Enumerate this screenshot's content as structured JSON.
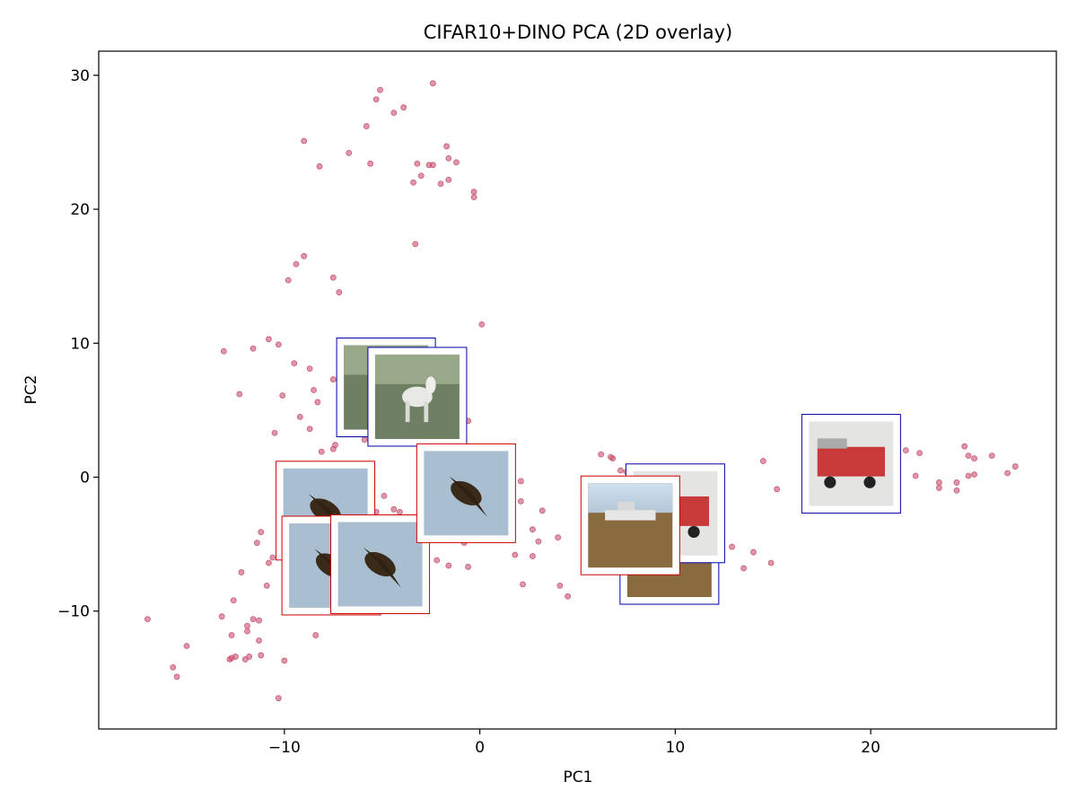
{
  "chart_data": {
    "type": "scatter",
    "title": "CIFAR10+DINO PCA (2D overlay)",
    "xlabel": "PC1",
    "ylabel": "PC2",
    "xlim": [
      -19.5,
      29.5
    ],
    "ylim": [
      -18.8,
      31.8
    ],
    "xticks": [
      -10,
      0,
      10,
      20
    ],
    "yticks": [
      -10,
      0,
      10,
      20,
      30
    ],
    "xtick_labels": [
      "−10",
      "0",
      "10",
      "20"
    ],
    "ytick_labels": [
      "−10",
      "0",
      "10",
      "20",
      "30"
    ],
    "grid": false,
    "marker_color": "#c8506e",
    "points": [
      {
        "x": -2.4,
        "y": 29.4
      },
      {
        "x": -5.1,
        "y": 28.9
      },
      {
        "x": -5.3,
        "y": 28.2
      },
      {
        "x": -3.9,
        "y": 27.6
      },
      {
        "x": -4.4,
        "y": 27.2
      },
      {
        "x": -5.8,
        "y": 26.2
      },
      {
        "x": -9.0,
        "y": 25.1
      },
      {
        "x": -1.7,
        "y": 24.7
      },
      {
        "x": -6.7,
        "y": 24.2
      },
      {
        "x": -1.6,
        "y": 23.8
      },
      {
        "x": -1.2,
        "y": 23.5
      },
      {
        "x": -5.6,
        "y": 23.4
      },
      {
        "x": -3.2,
        "y": 23.4
      },
      {
        "x": -2.6,
        "y": 23.3
      },
      {
        "x": -2.4,
        "y": 23.3
      },
      {
        "x": -8.2,
        "y": 23.2
      },
      {
        "x": -3.0,
        "y": 22.5
      },
      {
        "x": -1.6,
        "y": 22.2
      },
      {
        "x": -3.4,
        "y": 22.0
      },
      {
        "x": -2.0,
        "y": 21.9
      },
      {
        "x": -0.3,
        "y": 21.3
      },
      {
        "x": -0.3,
        "y": 20.9
      },
      {
        "x": -3.3,
        "y": 17.4
      },
      {
        "x": -9.0,
        "y": 16.5
      },
      {
        "x": -9.4,
        "y": 15.9
      },
      {
        "x": -7.5,
        "y": 14.9
      },
      {
        "x": -9.8,
        "y": 14.7
      },
      {
        "x": -7.2,
        "y": 13.8
      },
      {
        "x": 0.1,
        "y": 11.4
      },
      {
        "x": -10.8,
        "y": 10.3
      },
      {
        "x": -10.3,
        "y": 9.9
      },
      {
        "x": -11.6,
        "y": 9.6
      },
      {
        "x": -13.1,
        "y": 9.4
      },
      {
        "x": -9.5,
        "y": 8.5
      },
      {
        "x": -8.7,
        "y": 8.1
      },
      {
        "x": -7.5,
        "y": 7.3
      },
      {
        "x": -8.5,
        "y": 6.5
      },
      {
        "x": -12.3,
        "y": 6.2
      },
      {
        "x": -10.1,
        "y": 6.1
      },
      {
        "x": -8.3,
        "y": 5.6
      },
      {
        "x": -9.2,
        "y": 4.5
      },
      {
        "x": -0.6,
        "y": 4.2
      },
      {
        "x": -8.7,
        "y": 3.6
      },
      {
        "x": -10.5,
        "y": 3.3
      },
      {
        "x": -4.3,
        "y": 3.0
      },
      {
        "x": -5.9,
        "y": 2.8
      },
      {
        "x": -7.4,
        "y": 2.4
      },
      {
        "x": -7.5,
        "y": 2.1
      },
      {
        "x": -8.1,
        "y": 1.9
      },
      {
        "x": 6.2,
        "y": 1.7
      },
      {
        "x": 6.7,
        "y": 1.5
      },
      {
        "x": 6.8,
        "y": 1.4
      },
      {
        "x": 7.2,
        "y": 0.5
      },
      {
        "x": 7.5,
        "y": 0.4
      },
      {
        "x": 2.1,
        "y": -0.3
      },
      {
        "x": 14.5,
        "y": 1.2
      },
      {
        "x": 15.2,
        "y": -0.9
      },
      {
        "x": 21.8,
        "y": 2.0
      },
      {
        "x": 22.5,
        "y": 1.8
      },
      {
        "x": 22.3,
        "y": 0.1
      },
      {
        "x": 24.8,
        "y": 2.3
      },
      {
        "x": 25.0,
        "y": 1.6
      },
      {
        "x": 25.3,
        "y": 1.4
      },
      {
        "x": 26.2,
        "y": 1.6
      },
      {
        "x": 25.0,
        "y": 0.1
      },
      {
        "x": 25.3,
        "y": 0.2
      },
      {
        "x": 27.0,
        "y": 0.3
      },
      {
        "x": 27.4,
        "y": 0.8
      },
      {
        "x": 23.5,
        "y": -0.4
      },
      {
        "x": 24.4,
        "y": -0.4
      },
      {
        "x": 23.5,
        "y": -0.8
      },
      {
        "x": 24.4,
        "y": -1.0
      },
      {
        "x": -4.9,
        "y": -1.4
      },
      {
        "x": -5.6,
        "y": -1.3
      },
      {
        "x": 2.1,
        "y": -1.8
      },
      {
        "x": -4.4,
        "y": -2.4
      },
      {
        "x": -5.3,
        "y": -2.6
      },
      {
        "x": -4.1,
        "y": -2.6
      },
      {
        "x": -6.4,
        "y": -2.9
      },
      {
        "x": 3.2,
        "y": -2.5
      },
      {
        "x": 2.7,
        "y": -3.9
      },
      {
        "x": -11.2,
        "y": -4.1
      },
      {
        "x": -11.4,
        "y": -4.9
      },
      {
        "x": 4.0,
        "y": -4.5
      },
      {
        "x": 3.0,
        "y": -4.8
      },
      {
        "x": -0.8,
        "y": -4.9
      },
      {
        "x": 12.9,
        "y": -5.2
      },
      {
        "x": 14.0,
        "y": -5.6
      },
      {
        "x": 1.8,
        "y": -5.8
      },
      {
        "x": 2.7,
        "y": -5.9
      },
      {
        "x": -10.6,
        "y": -6.0
      },
      {
        "x": -2.2,
        "y": -6.2
      },
      {
        "x": -10.8,
        "y": -6.4
      },
      {
        "x": 14.9,
        "y": -6.4
      },
      {
        "x": -1.6,
        "y": -6.6
      },
      {
        "x": -0.6,
        "y": -6.7
      },
      {
        "x": 13.5,
        "y": -6.8
      },
      {
        "x": -12.2,
        "y": -7.1
      },
      {
        "x": 11.9,
        "y": -7.3
      },
      {
        "x": -2.7,
        "y": -7.9
      },
      {
        "x": -10.9,
        "y": -8.1
      },
      {
        "x": 2.2,
        "y": -8.0
      },
      {
        "x": 4.1,
        "y": -8.1
      },
      {
        "x": -12.6,
        "y": -9.2
      },
      {
        "x": 4.5,
        "y": -8.9
      },
      {
        "x": -7.4,
        "y": -10.1
      },
      {
        "x": -13.2,
        "y": -10.4
      },
      {
        "x": -17.0,
        "y": -10.6
      },
      {
        "x": -11.6,
        "y": -10.6
      },
      {
        "x": -11.3,
        "y": -10.7
      },
      {
        "x": -11.9,
        "y": -11.1
      },
      {
        "x": -11.9,
        "y": -11.5
      },
      {
        "x": -8.4,
        "y": -11.8
      },
      {
        "x": -12.7,
        "y": -11.8
      },
      {
        "x": -11.3,
        "y": -12.2
      },
      {
        "x": -15.0,
        "y": -12.6
      },
      {
        "x": -12.5,
        "y": -13.4
      },
      {
        "x": -12.7,
        "y": -13.5
      },
      {
        "x": -11.8,
        "y": -13.4
      },
      {
        "x": -11.2,
        "y": -13.3
      },
      {
        "x": -12.8,
        "y": -13.6
      },
      {
        "x": -12.0,
        "y": -13.6
      },
      {
        "x": -10.0,
        "y": -13.7
      },
      {
        "x": -15.7,
        "y": -14.2
      },
      {
        "x": -15.5,
        "y": -14.9
      },
      {
        "x": -10.3,
        "y": -16.5
      }
    ],
    "thumbnails": [
      {
        "x": -4.8,
        "y": 6.7,
        "frame": "#0000aa",
        "subject": "horse"
      },
      {
        "x": -3.2,
        "y": 6.0,
        "frame": "#0000aa",
        "subject": "horse"
      },
      {
        "x": -7.9,
        "y": -2.5,
        "frame": "#cc0000",
        "subject": "bird"
      },
      {
        "x": -7.6,
        "y": -6.6,
        "frame": "#cc0000",
        "subject": "bird"
      },
      {
        "x": -5.1,
        "y": -6.5,
        "frame": "#cc0000",
        "subject": "bird"
      },
      {
        "x": -0.7,
        "y": -1.2,
        "frame": "#cc0000",
        "subject": "bird"
      },
      {
        "x": 9.7,
        "y": -5.8,
        "frame": "#0000aa",
        "subject": "ship"
      },
      {
        "x": 10.0,
        "y": -2.7,
        "frame": "#0000aa",
        "subject": "truck"
      },
      {
        "x": 7.7,
        "y": -3.6,
        "frame": "#cc0000",
        "subject": "ship"
      },
      {
        "x": 19.0,
        "y": 1.0,
        "frame": "#0000aa",
        "subject": "truck"
      }
    ]
  }
}
